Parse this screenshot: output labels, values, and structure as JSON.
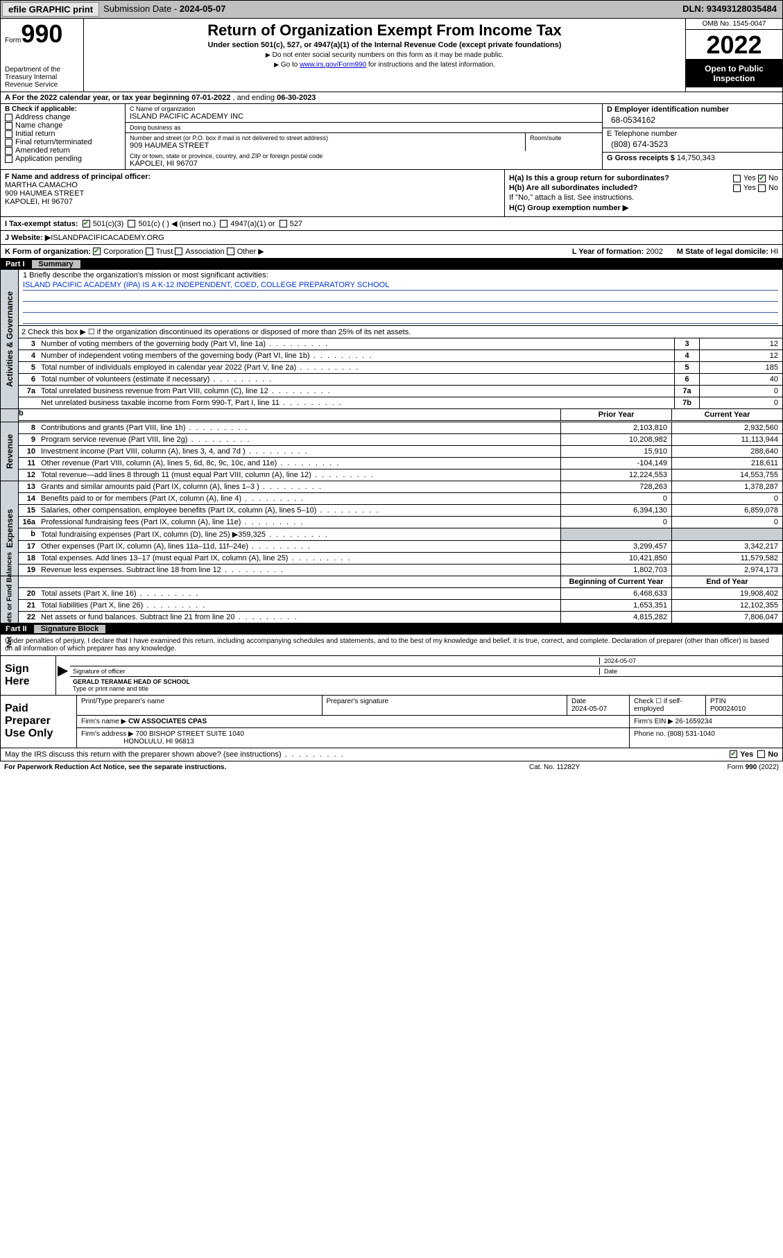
{
  "topbar": {
    "efile": "efile GRAPHIC print",
    "subdate_label": "Submission Date -",
    "subdate": "2024-05-07",
    "dln_label": "DLN:",
    "dln": "93493128035484"
  },
  "header": {
    "form_word": "Form",
    "form_no": "990",
    "dept": "Department of the Treasury\nInternal Revenue Service",
    "title": "Return of Organization Exempt From Income Tax",
    "subtitle": "Under section 501(c), 527, or 4947(a)(1) of the Internal Revenue Code (except private foundations)",
    "note1": "Do not enter social security numbers on this form as it may be made public.",
    "note2_pre": "Go to ",
    "note2_link": "www.irs.gov/Form990",
    "note2_post": " for instructions and the latest information.",
    "omb": "OMB No. 1545-0047",
    "year": "2022",
    "open": "Open to Public Inspection"
  },
  "period": {
    "label_a": "A For the 2022 calendar year, or tax year beginning ",
    "begin": "07-01-2022",
    "mid": " , and ending ",
    "end": "06-30-2023"
  },
  "blockB": {
    "label": "B Check if applicable:",
    "items": [
      "Address change",
      "Name change",
      "Initial return",
      "Final return/terminated",
      "Amended return",
      "Application pending"
    ]
  },
  "blockC": {
    "name_label": "C Name of organization",
    "name": "ISLAND PACIFIC ACADEMY INC",
    "dba_label": "Doing business as",
    "dba": "",
    "street_label": "Number and street (or P.O. box if mail is not delivered to street address)",
    "room_label": "Room/suite",
    "street": "909 HAUMEA STREET",
    "city_label": "City or town, state or province, country, and ZIP or foreign postal code",
    "city": "KAPOLEI, HI  96707"
  },
  "blockD": {
    "ein_label": "D Employer identification number",
    "ein": "68-0534162",
    "tel_label": "E Telephone number",
    "tel": "(808) 674-3523",
    "gross_label": "G Gross receipts $",
    "gross": "14,750,343"
  },
  "blockF": {
    "label": "F  Name and address of principal officer:",
    "name": "MARTHA CAMACHO",
    "street": "909 HAUMEA STREET",
    "city": "KAPOLEI, HI  96707"
  },
  "blockH": {
    "ha": "H(a)  Is this a group return for subordinates?",
    "ha_yes": "Yes",
    "ha_no": "No",
    "hb": "H(b)  Are all subordinates included?",
    "hb_yes": "Yes",
    "hb_no": "No",
    "hb_note": "If \"No,\" attach a list. See instructions.",
    "hc": "H(C)  Group exemption number ▶"
  },
  "rowI": {
    "label": "I   Tax-exempt status:",
    "opts": [
      "501(c)(3)",
      "501(c) (  ) ◀ (insert no.)",
      "4947(a)(1) or",
      "527"
    ]
  },
  "rowJ": {
    "label": "J   Website: ▶ ",
    "val": "ISLANDPACIFICACADEMY.ORG"
  },
  "rowK": {
    "label": "K Form of organization:",
    "opts": [
      "Corporation",
      "Trust",
      "Association",
      "Other ▶"
    ]
  },
  "rowLM": {
    "l_label": "L Year of formation:",
    "l_val": "2002",
    "m_label": "M State of legal domicile:",
    "m_val": "HI"
  },
  "part1": {
    "part": "Part I",
    "title": "Summary"
  },
  "governance": {
    "vlabel": "Activities & Governance",
    "r1_label": "1   Briefly describe the organization's mission or most significant activities:",
    "r1_val": "ISLAND PACIFIC ACADEMY (IPA) IS A K-12 INDEPENDENT, COED, COLLEGE PREPARATORY SCHOOL",
    "r2": "2   Check this box ▶ ☐  if the organization discontinued its operations or disposed of more than 25% of its net assets.",
    "rows": [
      {
        "n": "3",
        "t": "Number of voting members of the governing body (Part VI, line 1a)",
        "box": "3",
        "v": "12"
      },
      {
        "n": "4",
        "t": "Number of independent voting members of the governing body (Part VI, line 1b)",
        "box": "4",
        "v": "12"
      },
      {
        "n": "5",
        "t": "Total number of individuals employed in calendar year 2022 (Part V, line 2a)",
        "box": "5",
        "v": "185"
      },
      {
        "n": "6",
        "t": "Total number of volunteers (estimate if necessary)",
        "box": "6",
        "v": "40"
      },
      {
        "n": "7a",
        "t": "Total unrelated business revenue from Part VIII, column (C), line 12",
        "box": "7a",
        "v": "0"
      },
      {
        "n": "",
        "t": "Net unrelated business taxable income from Form 990-T, Part I, line 11",
        "box": "7b",
        "v": "0"
      }
    ]
  },
  "pv_head": {
    "b": "b",
    "prior": "Prior Year",
    "curr": "Current Year"
  },
  "revenue": {
    "vlabel": "Revenue",
    "rows": [
      {
        "n": "8",
        "t": "Contributions and grants (Part VIII, line 1h)",
        "p": "2,103,810",
        "c": "2,932,560"
      },
      {
        "n": "9",
        "t": "Program service revenue (Part VIII, line 2g)",
        "p": "10,208,982",
        "c": "11,113,944"
      },
      {
        "n": "10",
        "t": "Investment income (Part VIII, column (A), lines 3, 4, and 7d )",
        "p": "15,910",
        "c": "288,640"
      },
      {
        "n": "11",
        "t": "Other revenue (Part VIII, column (A), lines 5, 6d, 8c, 9c, 10c, and 11e)",
        "p": "-104,149",
        "c": "218,611"
      },
      {
        "n": "12",
        "t": "Total revenue—add lines 8 through 11 (must equal Part VIII, column (A), line 12)",
        "p": "12,224,553",
        "c": "14,553,755"
      }
    ]
  },
  "expenses": {
    "vlabel": "Expenses",
    "rows": [
      {
        "n": "13",
        "t": "Grants and similar amounts paid (Part IX, column (A), lines 1–3 )",
        "p": "728,263",
        "c": "1,378,287"
      },
      {
        "n": "14",
        "t": "Benefits paid to or for members (Part IX, column (A), line 4)",
        "p": "0",
        "c": "0"
      },
      {
        "n": "15",
        "t": "Salaries, other compensation, employee benefits (Part IX, column (A), lines 5–10)",
        "p": "6,394,130",
        "c": "6,859,078"
      },
      {
        "n": "16a",
        "t": "Professional fundraising fees (Part IX, column (A), line 11e)",
        "p": "0",
        "c": "0"
      },
      {
        "n": "b",
        "t": "Total fundraising expenses (Part IX, column (D), line 25) ▶359,325",
        "p": "gray",
        "c": "gray"
      },
      {
        "n": "17",
        "t": "Other expenses (Part IX, column (A), lines 11a–11d, 11f–24e)",
        "p": "3,299,457",
        "c": "3,342,217"
      },
      {
        "n": "18",
        "t": "Total expenses. Add lines 13–17 (must equal Part IX, column (A), line 25)",
        "p": "10,421,850",
        "c": "11,579,582"
      },
      {
        "n": "19",
        "t": "Revenue less expenses. Subtract line 18 from line 12",
        "p": "1,802,703",
        "c": "2,974,173"
      }
    ]
  },
  "netassets": {
    "vlabel": "Net Assets or\nFund Balances",
    "head_p": "Beginning of Current Year",
    "head_c": "End of Year",
    "rows": [
      {
        "n": "20",
        "t": "Total assets (Part X, line 16)",
        "p": "6,468,633",
        "c": "19,908,402"
      },
      {
        "n": "21",
        "t": "Total liabilities (Part X, line 26)",
        "p": "1,653,351",
        "c": "12,102,355"
      },
      {
        "n": "22",
        "t": "Net assets or fund balances. Subtract line 21 from line 20",
        "p": "4,815,282",
        "c": "7,806,047"
      }
    ]
  },
  "part2": {
    "part": "Part II",
    "title": "Signature Block"
  },
  "sig_intro": "Under penalties of perjury, I declare that I have examined this return, including accompanying schedules and statements, and to the best of my knowledge and belief, it is true, correct, and complete. Declaration of preparer (other than officer) is based on all information of which preparer has any knowledge.",
  "sign": {
    "label": "Sign Here",
    "sig_officer": "Signature of officer",
    "date": "2024-05-07",
    "date_lbl": "Date",
    "name": "GERALD TERAMAE  HEAD OF SCHOOL",
    "name_lbl": "Type or print name and title"
  },
  "paid": {
    "label": "Paid Preparer Use Only",
    "r1": {
      "c1": "Print/Type preparer's name",
      "c2": "Preparer's signature",
      "c3_lbl": "Date",
      "c3": "2024-05-07",
      "c4_lbl": "Check ☐ if self-employed",
      "c5_lbl": "PTIN",
      "c5": "P00024010"
    },
    "r2": {
      "c1_lbl": "Firm's name   ▶",
      "c1": "CW ASSOCIATES CPAS",
      "c2_lbl": "Firm's EIN ▶",
      "c2": "26-1659234"
    },
    "r3": {
      "c1_lbl": "Firm's address ▶",
      "c1a": "700 BISHOP STREET SUITE 1040",
      "c1b": "HONOLULU, HI  96813",
      "c2_lbl": "Phone no.",
      "c2": "(808) 531-1040"
    }
  },
  "footer1": {
    "t": "May the IRS discuss this return with the preparer shown above? (see instructions)",
    "yes": "Yes",
    "no": "No"
  },
  "footer2": {
    "l": "For Paperwork Reduction Act Notice, see the separate instructions.",
    "m": "Cat. No. 11282Y",
    "r": "Form 990 (2022)"
  }
}
